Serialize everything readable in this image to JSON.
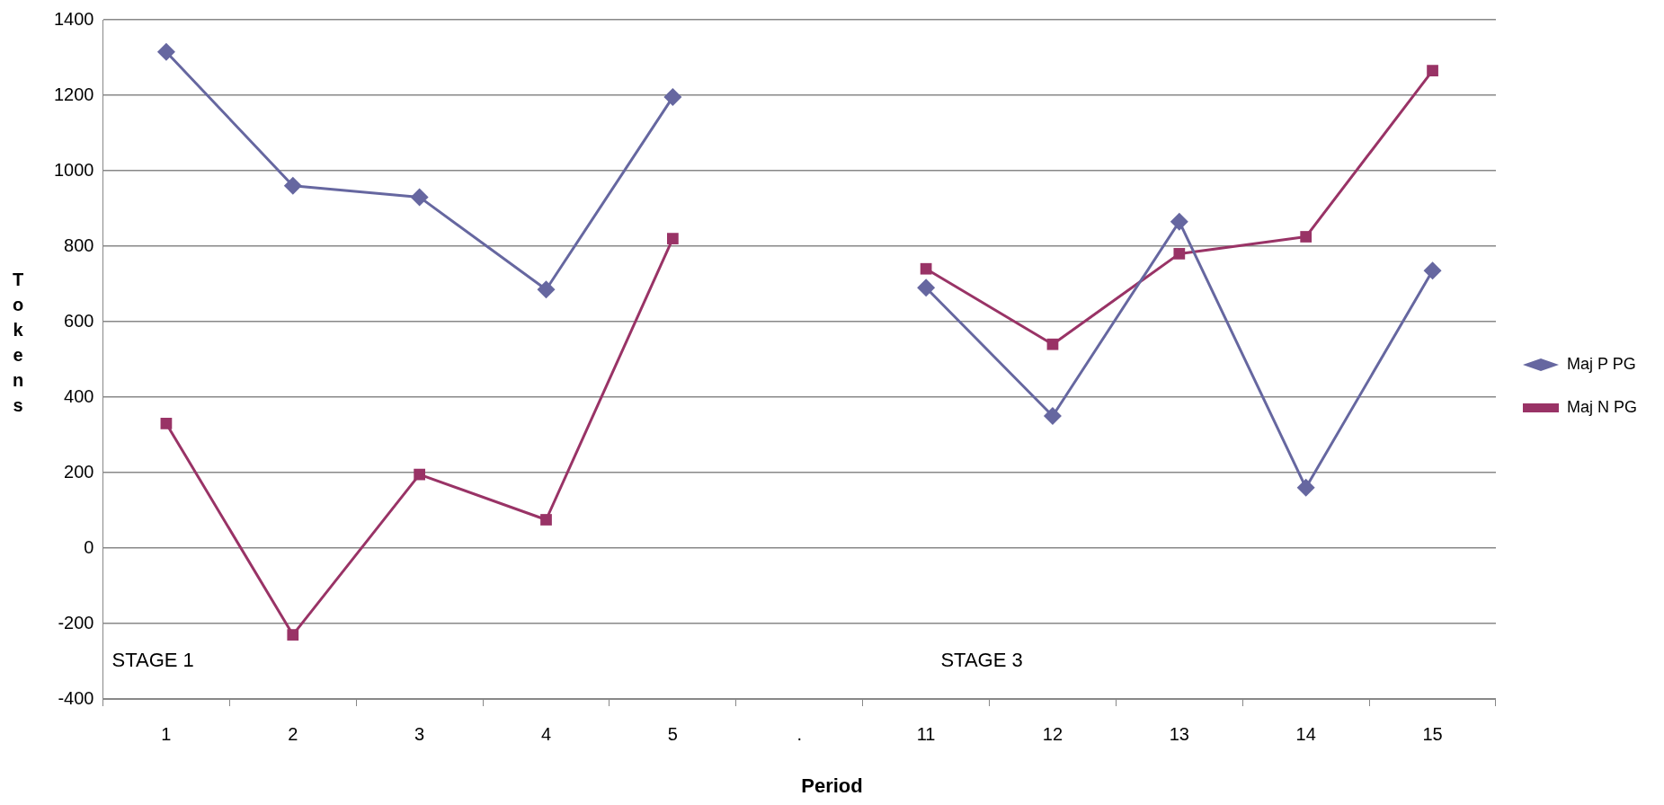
{
  "chart_data": {
    "type": "line",
    "xlabel": "Period",
    "ylabel": "Tokens",
    "categories": [
      "1",
      "2",
      "3",
      "4",
      "5",
      ".",
      "11",
      "12",
      "13",
      "14",
      "15"
    ],
    "series": [
      {
        "name": "Maj P PG",
        "color": "#6667a0",
        "marker": "diamond",
        "values": [
          1315,
          960,
          930,
          685,
          1195,
          null,
          690,
          350,
          865,
          160,
          735
        ]
      },
      {
        "name": "Maj N PG",
        "color": "#993366",
        "marker": "square",
        "values": [
          330,
          -230,
          195,
          75,
          820,
          null,
          740,
          540,
          780,
          825,
          1265
        ]
      }
    ],
    "ylim": [
      -400,
      1400
    ],
    "yticks": [
      -400,
      -200,
      0,
      200,
      400,
      600,
      800,
      1000,
      1200,
      1400
    ],
    "grid": "y",
    "legend": "right",
    "line_style": "solid",
    "annotations": [
      "STAGE 1",
      "STAGE 3"
    ]
  }
}
